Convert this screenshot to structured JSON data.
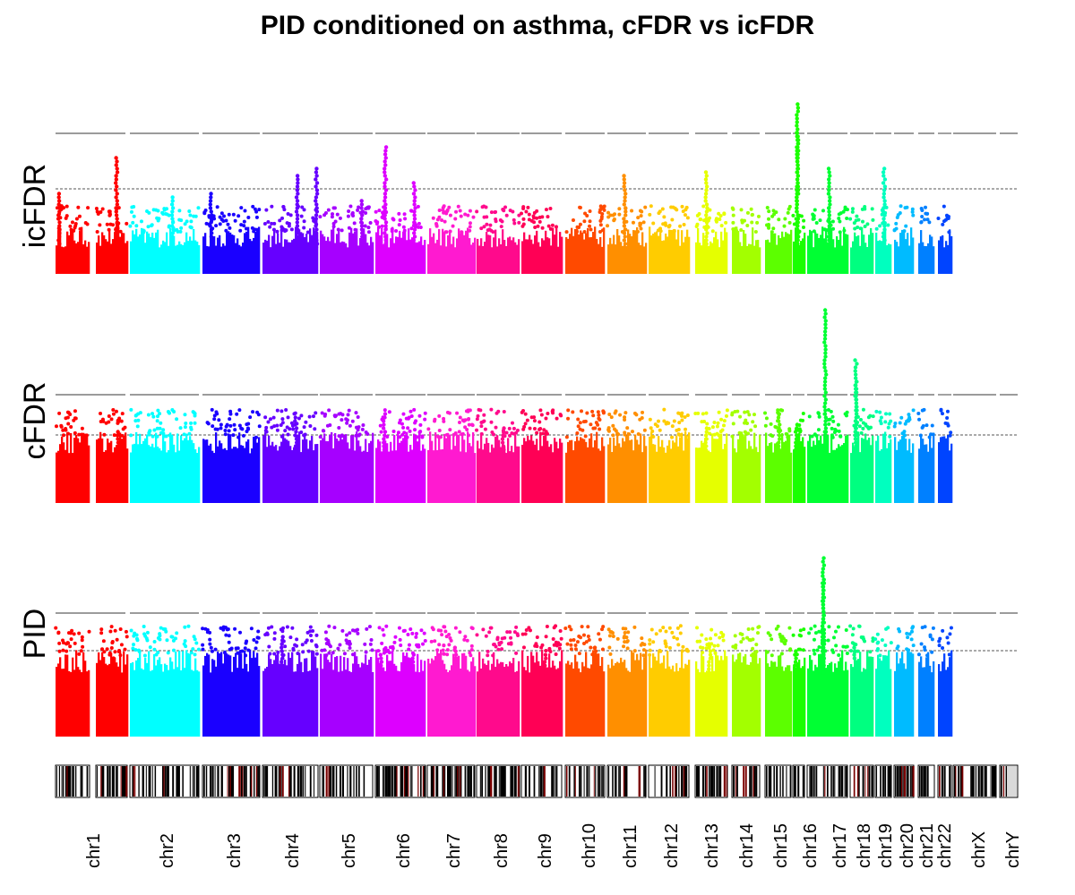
{
  "chart_data": {
    "type": "scatter",
    "title": "PID conditioned on asthma, cFDR vs icFDR",
    "panels": [
      {
        "name": "icFDR",
        "ylabel": "icFDR",
        "peaks": [
          {
            "chr": "chr1",
            "pos": 0.05,
            "y": 0.44
          },
          {
            "chr": "chr1",
            "pos": 0.83,
            "y": 0.62
          },
          {
            "chr": "chr2",
            "pos": 0.62,
            "y": 0.42
          },
          {
            "chr": "chr3",
            "pos": 0.15,
            "y": 0.43
          },
          {
            "chr": "chr4",
            "pos": 0.62,
            "y": 0.53
          },
          {
            "chr": "chr4",
            "pos": 0.97,
            "y": 0.57
          },
          {
            "chr": "chr5",
            "pos": 0.8,
            "y": 0.4
          },
          {
            "chr": "chr6",
            "pos": 0.2,
            "y": 0.68
          },
          {
            "chr": "chr6",
            "pos": 0.78,
            "y": 0.5
          },
          {
            "chr": "chr11",
            "pos": 0.45,
            "y": 0.52
          },
          {
            "chr": "chr13",
            "pos": 0.35,
            "y": 0.54
          },
          {
            "chr": "chr16",
            "pos": 0.4,
            "y": 0.91
          },
          {
            "chr": "chr16",
            "pos": 0.4,
            "y": 0.75
          },
          {
            "chr": "chr17",
            "pos": 0.55,
            "y": 0.56
          },
          {
            "chr": "chr19",
            "pos": 0.55,
            "y": 0.56
          }
        ]
      },
      {
        "name": "cFDR",
        "ylabel": "cFDR",
        "peaks": [
          {
            "chr": "chr1",
            "pos": 0.85,
            "y": 0.36
          },
          {
            "chr": "chr4",
            "pos": 0.6,
            "y": 0.44
          },
          {
            "chr": "chr6",
            "pos": 0.18,
            "y": 0.46
          },
          {
            "chr": "chr8",
            "pos": 0.62,
            "y": 0.38
          },
          {
            "chr": "chr13",
            "pos": 0.35,
            "y": 0.38
          },
          {
            "chr": "chr15",
            "pos": 0.55,
            "y": 0.45
          },
          {
            "chr": "chr16",
            "pos": 0.3,
            "y": 0.4
          },
          {
            "chr": "chr17",
            "pos": 0.45,
            "y": 0.98
          },
          {
            "chr": "chr18",
            "pos": 0.25,
            "y": 0.73
          },
          {
            "chr": "chr18",
            "pos": 0.25,
            "y": 0.62
          }
        ]
      },
      {
        "name": "PID",
        "ylabel": "PID",
        "peaks": [
          {
            "chr": "chr1",
            "pos": 0.78,
            "y": 0.37
          },
          {
            "chr": "chr3",
            "pos": 0.3,
            "y": 0.38
          },
          {
            "chr": "chr4",
            "pos": 0.35,
            "y": 0.47
          },
          {
            "chr": "chr6",
            "pos": 0.12,
            "y": 0.4
          },
          {
            "chr": "chr6",
            "pos": 0.75,
            "y": 0.4
          },
          {
            "chr": "chr7",
            "pos": 0.6,
            "y": 0.42
          },
          {
            "chr": "chr9",
            "pos": 0.6,
            "y": 0.4
          },
          {
            "chr": "chr10",
            "pos": 0.75,
            "y": 0.42
          },
          {
            "chr": "chr13",
            "pos": 0.45,
            "y": 0.44
          },
          {
            "chr": "chr16",
            "pos": 0.25,
            "y": 0.41
          },
          {
            "chr": "chr17",
            "pos": 0.4,
            "y": 0.84
          },
          {
            "chr": "chr17",
            "pos": 0.4,
            "y": 0.74
          },
          {
            "chr": "chr17",
            "pos": 0.4,
            "y": 0.48
          },
          {
            "chr": "chr18",
            "pos": 0.2,
            "y": 0.44
          }
        ]
      }
    ],
    "chromosomes": [
      {
        "name": "chr1",
        "color": "#ff0000"
      },
      {
        "name": "chr2",
        "color": "#00ffff"
      },
      {
        "name": "chr3",
        "color": "#1a00ff"
      },
      {
        "name": "chr4",
        "color": "#6600ff"
      },
      {
        "name": "chr5",
        "color": "#a600ff"
      },
      {
        "name": "chr6",
        "color": "#dd00ff"
      },
      {
        "name": "chr7",
        "color": "#ff1ad0"
      },
      {
        "name": "chr8",
        "color": "#ff0a8c"
      },
      {
        "name": "chr9",
        "color": "#ff0055"
      },
      {
        "name": "chr10",
        "color": "#ff4a00"
      },
      {
        "name": "chr11",
        "color": "#ff8f00"
      },
      {
        "name": "chr12",
        "color": "#ffcc00"
      },
      {
        "name": "chr13",
        "color": "#e5ff00"
      },
      {
        "name": "chr14",
        "color": "#a3ff00"
      },
      {
        "name": "chr15",
        "color": "#5cff00"
      },
      {
        "name": "chr16",
        "color": "#1aff00"
      },
      {
        "name": "chr17",
        "color": "#00ff33"
      },
      {
        "name": "chr18",
        "color": "#00ff80"
      },
      {
        "name": "chr19",
        "color": "#00ffbf"
      },
      {
        "name": "chr20",
        "color": "#00bbff"
      },
      {
        "name": "chr21",
        "color": "#0080ff"
      },
      {
        "name": "chr22",
        "color": "#0044ff"
      },
      {
        "name": "chrX",
        "color": ""
      },
      {
        "name": "chrY",
        "color": ""
      }
    ],
    "threshold_lines": [
      "solid",
      "dashed"
    ],
    "grid": false,
    "legend": "none"
  }
}
